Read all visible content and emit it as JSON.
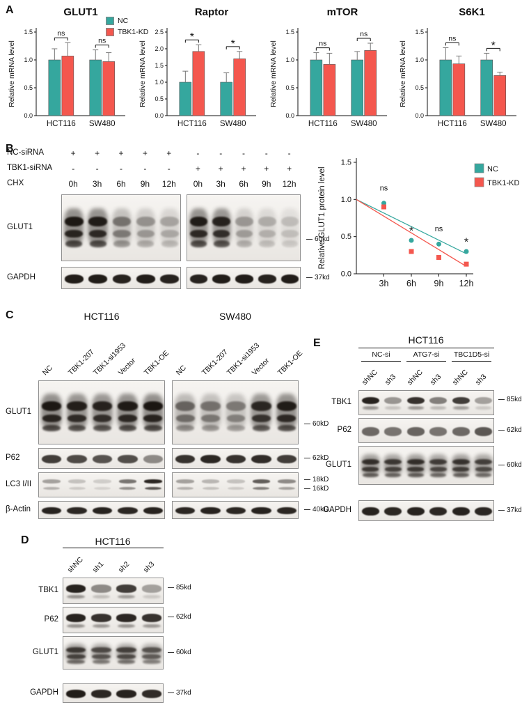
{
  "colors": {
    "nc": "#35a79e",
    "kd": "#f4574e",
    "error": "#777777",
    "axis": "#111111"
  },
  "chart_data": [
    {
      "type": "bar",
      "title": "GLUT1",
      "ylabel": "Relative mRNA level",
      "ylim": [
        0,
        1.5
      ],
      "yticks": [
        "0.0",
        "0.5",
        "1.0",
        "1.5"
      ],
      "categories": [
        "HCT116",
        "SW480"
      ],
      "series": [
        {
          "name": "NC",
          "values": [
            1.0,
            1.0
          ],
          "errors": [
            0.2,
            0.18
          ]
        },
        {
          "name": "TBK1-KD",
          "values": [
            1.07,
            0.97
          ],
          "errors": [
            0.24,
            0.16
          ]
        }
      ],
      "significance": [
        "ns",
        "ns"
      ]
    },
    {
      "type": "bar",
      "title": "Raptor",
      "ylabel": "Relative mRNA level",
      "ylim": [
        0,
        2.5
      ],
      "yticks": [
        "0.0",
        "0.5",
        "1.0",
        "1.5",
        "2.0",
        "2.5"
      ],
      "categories": [
        "HCT116",
        "SW480"
      ],
      "series": [
        {
          "name": "NC",
          "values": [
            1.0,
            1.0
          ],
          "errors": [
            0.33,
            0.28
          ]
        },
        {
          "name": "TBK1-KD",
          "values": [
            1.92,
            1.7
          ],
          "errors": [
            0.2,
            0.22
          ]
        }
      ],
      "significance": [
        "*",
        "*"
      ]
    },
    {
      "type": "bar",
      "title": "mTOR",
      "ylabel": "Relative mRNA level",
      "ylim": [
        0,
        1.5
      ],
      "yticks": [
        "0.0",
        "0.5",
        "1.0",
        "1.5"
      ],
      "categories": [
        "HCT116",
        "SW480"
      ],
      "series": [
        {
          "name": "NC",
          "values": [
            1.0,
            1.0
          ],
          "errors": [
            0.13,
            0.15
          ]
        },
        {
          "name": "TBK1-KD",
          "values": [
            0.92,
            1.17
          ],
          "errors": [
            0.2,
            0.13
          ]
        }
      ],
      "significance": [
        "ns",
        "ns"
      ]
    },
    {
      "type": "bar",
      "title": "S6K1",
      "ylabel": "Relative mRNA level",
      "ylim": [
        0,
        1.5
      ],
      "yticks": [
        "0.0",
        "0.5",
        "1.0",
        "1.5"
      ],
      "categories": [
        "HCT116",
        "SW480"
      ],
      "series": [
        {
          "name": "NC",
          "values": [
            1.0,
            1.0
          ],
          "errors": [
            0.22,
            0.12
          ]
        },
        {
          "name": "TBK1-KD",
          "values": [
            0.93,
            0.72
          ],
          "errors": [
            0.14,
            0.06
          ]
        }
      ],
      "significance": [
        "ns",
        "*"
      ]
    },
    {
      "type": "scatter",
      "title": "",
      "ylabel": "Relative GLUT1 protein level",
      "ylim": [
        0,
        1.5
      ],
      "yticks": [
        "0.0",
        "0.5",
        "1.0",
        "1.5"
      ],
      "xticks": [
        "3h",
        "6h",
        "9h",
        "12h"
      ],
      "legend_position": "top-right",
      "series": [
        {
          "name": "NC",
          "marker": "circle",
          "points": [
            [
              3,
              0.95
            ],
            [
              6,
              0.45
            ],
            [
              9,
              0.4
            ],
            [
              12,
              0.3
            ]
          ],
          "trend": [
            [
              0,
              1.0
            ],
            [
              12,
              0.27
            ]
          ]
        },
        {
          "name": "TBK1-KD",
          "marker": "square",
          "points": [
            [
              3,
              0.9
            ],
            [
              6,
              0.3
            ],
            [
              9,
              0.22
            ],
            [
              12,
              0.13
            ]
          ],
          "trend": [
            [
              0,
              1.0
            ],
            [
              12,
              0.1
            ]
          ]
        }
      ],
      "significance": [
        {
          "x": 3,
          "label": "ns"
        },
        {
          "x": 6,
          "label": "*"
        },
        {
          "x": 9,
          "label": "ns"
        },
        {
          "x": 12,
          "label": "*"
        }
      ]
    }
  ],
  "panelA": {
    "label": "A",
    "legend": {
      "nc": "NC",
      "kd": "TBK1-KD"
    }
  },
  "panelB": {
    "label": "B",
    "conditions": [
      {
        "label": "NC-siRNA",
        "values": [
          "+",
          "+",
          "+",
          "+",
          "+",
          "-",
          "-",
          "-",
          "-",
          "-"
        ]
      },
      {
        "label": "TBK1-siRNA",
        "values": [
          "-",
          "-",
          "-",
          "-",
          "-",
          "+",
          "+",
          "+",
          "+",
          "+"
        ]
      },
      {
        "label": "CHX",
        "values": [
          "0h",
          "3h",
          "6h",
          "9h",
          "12h",
          "0h",
          "3h",
          "6h",
          "9h",
          "12h"
        ]
      }
    ],
    "blots": [
      {
        "label": "GLUT1",
        "marker": "60kd",
        "style": "smear",
        "groups": [
          [
            0.95,
            0.92,
            0.45,
            0.32,
            0.25
          ],
          [
            0.92,
            0.88,
            0.3,
            0.22,
            0.16
          ]
        ]
      },
      {
        "label": "GAPDH",
        "marker": "37kd",
        "style": "band",
        "groups": [
          [
            0.95,
            0.95,
            0.92,
            0.95,
            0.92
          ],
          [
            0.92,
            0.95,
            0.95,
            0.92,
            0.95
          ]
        ]
      }
    ]
  },
  "panelC": {
    "label": "C",
    "groups": [
      {
        "title": "HCT116",
        "lanes": [
          "NC",
          "TBK1-207",
          "TBK1-si1953",
          "Vector",
          "TBK1-OE"
        ]
      },
      {
        "title": "SW480",
        "lanes": [
          "NC",
          "TBK1-207",
          "TBK1-si1953",
          "Vector",
          "TBK1-OE"
        ]
      }
    ],
    "blots": [
      {
        "label": "GLUT1",
        "markers": [
          "60kD"
        ],
        "style": "smear",
        "groups": [
          [
            0.95,
            0.9,
            0.88,
            0.93,
            0.96
          ],
          [
            0.52,
            0.46,
            0.42,
            0.85,
            0.92
          ]
        ]
      },
      {
        "label": "P62",
        "markers": [
          "62kD"
        ],
        "style": "band",
        "groups": [
          [
            0.8,
            0.74,
            0.7,
            0.72,
            0.45
          ],
          [
            0.85,
            0.9,
            0.85,
            0.88,
            0.8
          ]
        ]
      },
      {
        "label": "LC3 I/II",
        "markers": [
          "18kD",
          "16kD"
        ],
        "style": "double",
        "groups": [
          [
            0.35,
            0.2,
            0.15,
            0.55,
            0.9
          ],
          [
            0.35,
            0.25,
            0.2,
            0.65,
            0.45
          ]
        ]
      },
      {
        "label": "β-Actin",
        "markers": [
          "40kD"
        ],
        "style": "band",
        "groups": [
          [
            0.92,
            0.9,
            0.92,
            0.9,
            0.92
          ],
          [
            0.9,
            0.92,
            0.9,
            0.92,
            0.9
          ]
        ]
      }
    ]
  },
  "panelD": {
    "label": "D",
    "title": "HCT116",
    "lanes": [
      "shNC",
      "sh1",
      "sh2",
      "sh3"
    ],
    "blots": [
      {
        "label": "TBK1",
        "marker": "85kd",
        "style": "band2",
        "bands": [
          0.92,
          0.45,
          0.8,
          0.35
        ]
      },
      {
        "label": "P62",
        "marker": "62kd",
        "style": "band2",
        "bands": [
          0.92,
          0.85,
          0.9,
          0.85
        ]
      },
      {
        "label": "GLUT1",
        "marker": "60kd",
        "style": "smear",
        "bands": [
          0.75,
          0.65,
          0.7,
          0.6
        ]
      },
      {
        "label": "GAPDH",
        "marker": "37kd",
        "style": "band",
        "bands": [
          0.95,
          0.9,
          0.92,
          0.88
        ]
      }
    ]
  },
  "panelE": {
    "label": "E",
    "title": "HCT116",
    "groups": [
      {
        "label": "NC-si"
      },
      {
        "label": "ATG7-si"
      },
      {
        "label": "TBC1D5-si"
      }
    ],
    "sublanes": [
      "shNC",
      "sh3",
      "shNC",
      "sh3",
      "shNC",
      "sh3"
    ],
    "blots": [
      {
        "label": "TBK1",
        "marker": "85kd",
        "style": "band2",
        "bands": [
          0.92,
          0.4,
          0.85,
          0.5,
          0.8,
          0.35
        ]
      },
      {
        "label": "P62",
        "marker": "62kd",
        "style": "band",
        "bands": [
          0.6,
          0.55,
          0.62,
          0.55,
          0.6,
          0.68
        ]
      },
      {
        "label": "GLUT1",
        "marker": "60kd",
        "style": "smear",
        "bands": [
          0.8,
          0.75,
          0.8,
          0.72,
          0.78,
          0.7
        ]
      },
      {
        "label": "GAPDH",
        "marker": "37kd",
        "style": "band",
        "bands": [
          0.92,
          0.9,
          0.92,
          0.9,
          0.92,
          0.9
        ]
      }
    ]
  }
}
